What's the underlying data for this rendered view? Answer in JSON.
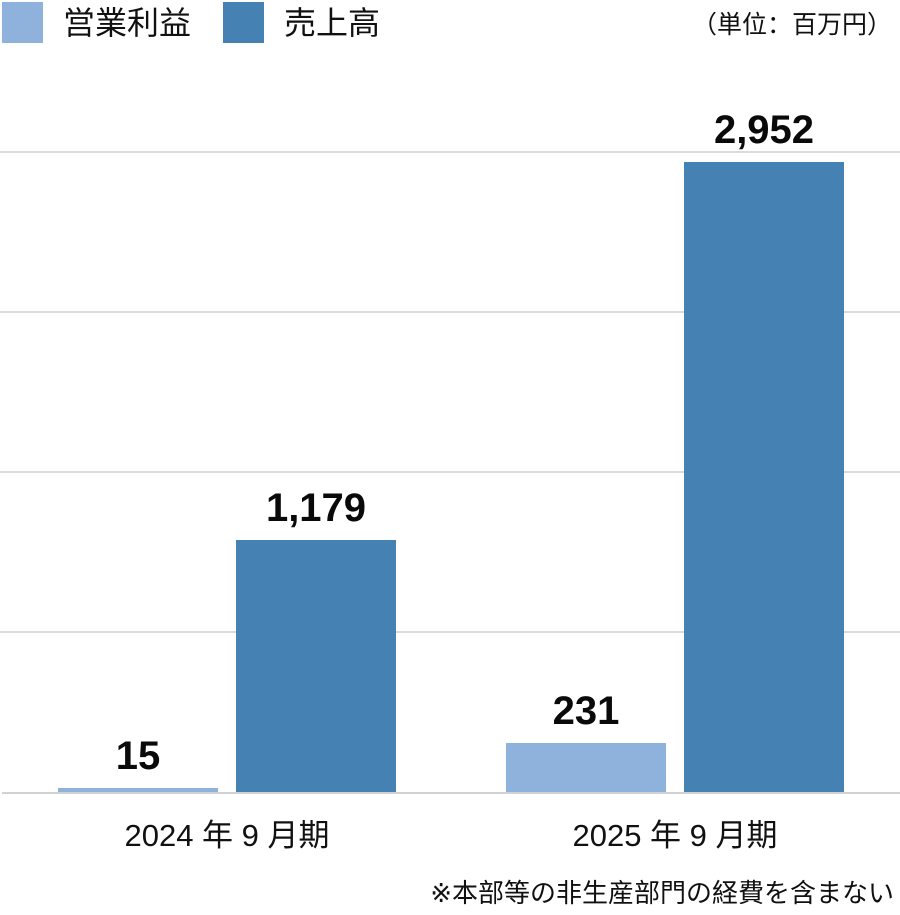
{
  "header": {
    "legend": [
      {
        "label": "営業利益",
        "color": "#8FB2DC"
      },
      {
        "label": "売上高",
        "color": "#4681B4"
      }
    ],
    "unit_note": "（単位：百万円）"
  },
  "footnote": "※本部等の非生産部門の経費を含まない",
  "chart_data": {
    "type": "bar",
    "categories": [
      "2024 年 9 月期",
      "2025 年 9 月期"
    ],
    "series": [
      {
        "name": "営業利益",
        "color": "#8FB2DC",
        "values": [
          15,
          231
        ],
        "value_labels": [
          "15",
          "231"
        ]
      },
      {
        "name": "売上高",
        "color": "#4681B4",
        "values": [
          1179,
          2952
        ],
        "value_labels": [
          "1,179",
          "2,952"
        ]
      }
    ],
    "title": "",
    "xlabel": "",
    "ylabel": "",
    "ylim": [
      0,
      3000
    ],
    "gridline_interval": 750,
    "grid": true,
    "y_axis_tick_labels_shown": false,
    "value_labels_shown": true,
    "legend_position": "top-left"
  },
  "colors": {
    "gridline": "#DBDBDB",
    "axis": "#D2D2D2",
    "text": "#111111",
    "background": "#FFFFFF"
  }
}
